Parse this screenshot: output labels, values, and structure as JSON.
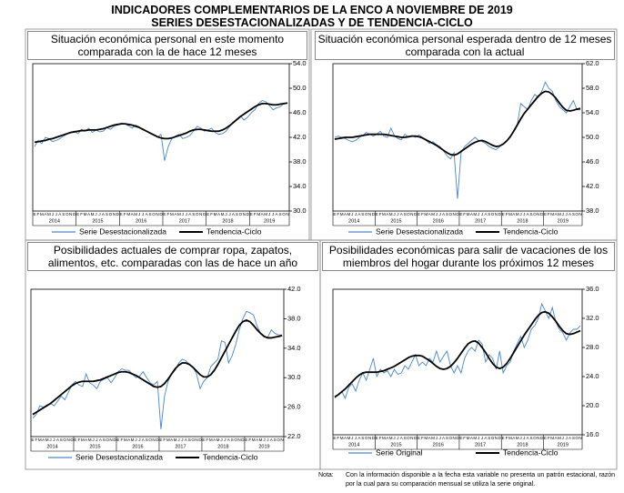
{
  "title": [
    "INDICADORES COMPLEMENTARIOS DE LA ENCO A NOVIEMBRE DE 2019",
    "SERIES DESESTACIONALIZADAS Y DE TENDENCIA-CICLO"
  ],
  "chart_data": [
    {
      "type": "line",
      "title": "Situación económica personal en este momento comparada con la de hace 12 meses",
      "categories": [
        "E",
        "F",
        "M",
        "A",
        "M",
        "J",
        "J",
        "A",
        "S",
        "O",
        "N",
        "D",
        "E",
        "F",
        "M",
        "A",
        "M",
        "J",
        "J",
        "A",
        "S",
        "O",
        "N",
        "D",
        "E",
        "F",
        "M",
        "A",
        "M",
        "J",
        "J",
        "A",
        "S",
        "O",
        "N",
        "D",
        "E",
        "F",
        "M",
        "A",
        "M",
        "J",
        "J",
        "A",
        "S",
        "O",
        "N",
        "D",
        "E",
        "F",
        "M",
        "A",
        "M",
        "J",
        "J",
        "A",
        "S",
        "O",
        "N",
        "D",
        "E",
        "F",
        "M",
        "A",
        "M",
        "J",
        "J",
        "A",
        "S",
        "O",
        "N"
      ],
      "years": [
        "2014",
        "2015",
        "2016",
        "2017",
        "2018",
        "2019"
      ],
      "ylim": [
        30,
        54
      ],
      "yticks": [
        {
          "value": 30,
          "label": "30.0"
        },
        {
          "value": 34,
          "label": "34.0"
        },
        {
          "value": 38,
          "label": "38.0"
        },
        {
          "value": 42,
          "label": "42.0"
        },
        {
          "value": 46,
          "label": "46.0"
        },
        {
          "value": 50,
          "label": "50.0"
        },
        {
          "value": 54,
          "label": "54.0"
        }
      ],
      "series": [
        {
          "name": "Serie Desestacionalizada",
          "color": "#4a86c8",
          "values": [
            40.5,
            41.5,
            41.0,
            42.0,
            41.8,
            41.3,
            41.5,
            41.8,
            42.2,
            42.5,
            42.8,
            43.0,
            42.6,
            43.3,
            43.0,
            43.5,
            42.8,
            43.2,
            42.9,
            43.0,
            43.6,
            43.3,
            43.8,
            44.0,
            44.3,
            44.2,
            43.9,
            43.5,
            44.0,
            43.7,
            43.2,
            43.0,
            42.7,
            42.4,
            42.0,
            42.5,
            38.2,
            40.5,
            41.8,
            42.2,
            42.5,
            41.8,
            42.0,
            42.3,
            43.0,
            43.8,
            43.5,
            43.0,
            43.2,
            43.5,
            42.8,
            42.5,
            42.6,
            43.0,
            43.8,
            44.5,
            45.0,
            45.5,
            44.8,
            45.3,
            46.0,
            46.5,
            47.5,
            48.0,
            47.8,
            47.2,
            46.5,
            46.8,
            47.0,
            47.5,
            47.6
          ]
        },
        {
          "name": "Tendencia-Ciclo",
          "color": "#000000",
          "values": [
            41.2,
            41.3,
            41.4,
            41.5,
            41.7,
            41.8,
            42.0,
            42.2,
            42.4,
            42.6,
            42.8,
            42.9,
            43.0,
            43.1,
            43.1,
            43.2,
            43.2,
            43.2,
            43.3,
            43.4,
            43.6,
            43.8,
            44.0,
            44.1,
            44.2,
            44.2,
            44.1,
            44.0,
            43.8,
            43.6,
            43.3,
            43.0,
            42.7,
            42.4,
            42.1,
            41.9,
            41.8,
            41.8,
            41.9,
            42.1,
            42.3,
            42.5,
            42.7,
            43.0,
            43.2,
            43.3,
            43.3,
            43.2,
            43.1,
            43.0,
            43.0,
            43.0,
            43.2,
            43.5,
            43.9,
            44.4,
            44.9,
            45.4,
            45.8,
            46.2,
            46.6,
            47.0,
            47.3,
            47.5,
            47.5,
            47.4,
            47.3,
            47.3,
            47.4,
            47.5,
            47.6
          ]
        }
      ]
    },
    {
      "type": "line",
      "title": "Situación económica personal esperada dentro de 12 meses comparada con la actual",
      "categories": [
        "E",
        "F",
        "M",
        "A",
        "M",
        "J",
        "J",
        "A",
        "S",
        "O",
        "N",
        "D",
        "E",
        "F",
        "M",
        "A",
        "M",
        "J",
        "J",
        "A",
        "S",
        "O",
        "N",
        "D",
        "E",
        "F",
        "M",
        "A",
        "M",
        "J",
        "J",
        "A",
        "S",
        "O",
        "N",
        "D",
        "E",
        "F",
        "M",
        "A",
        "M",
        "J",
        "J",
        "A",
        "S",
        "O",
        "N",
        "D",
        "E",
        "F",
        "M",
        "A",
        "M",
        "J",
        "J",
        "A",
        "S",
        "O",
        "N",
        "D",
        "E",
        "F",
        "M",
        "A",
        "M",
        "J",
        "J",
        "A",
        "S",
        "O",
        "N"
      ],
      "years": [
        "2014",
        "2015",
        "2016",
        "2017",
        "2018",
        "2019"
      ],
      "ylim": [
        38,
        62
      ],
      "yticks": [
        {
          "value": 38,
          "label": "38.0"
        },
        {
          "value": 42,
          "label": "42.0"
        },
        {
          "value": 46,
          "label": "46.0"
        },
        {
          "value": 50,
          "label": "50.0"
        },
        {
          "value": 54,
          "label": "54.0"
        },
        {
          "value": 58,
          "label": "58.0"
        },
        {
          "value": 62,
          "label": "62.0"
        }
      ],
      "series": [
        {
          "name": "Serie Desestacionalizada",
          "color": "#4a86c8",
          "values": [
            50.0,
            50.2,
            50.0,
            49.8,
            49.5,
            49.3,
            49.5,
            50.0,
            50.3,
            50.8,
            50.5,
            50.2,
            50.5,
            51.0,
            50.2,
            50.0,
            51.5,
            50.3,
            49.8,
            49.6,
            50.5,
            50.0,
            50.3,
            50.0,
            50.4,
            50.0,
            49.5,
            49.0,
            49.3,
            48.8,
            48.5,
            47.8,
            47.0,
            46.5,
            47.5,
            40.0,
            47.5,
            48.5,
            49.0,
            49.5,
            50.0,
            49.5,
            49.3,
            49.0,
            48.5,
            48.2,
            48.0,
            48.5,
            49.0,
            49.5,
            50.0,
            51.0,
            52.0,
            55.5,
            55.0,
            54.5,
            56.0,
            57.0,
            56.5,
            57.5,
            59.0,
            58.0,
            57.5,
            56.0,
            55.0,
            54.5,
            54.0,
            55.0,
            56.0,
            54.5,
            54.5
          ]
        },
        {
          "name": "Tendencia-Ciclo",
          "color": "#000000",
          "values": [
            49.7,
            49.8,
            49.9,
            50.0,
            50.0,
            50.0,
            50.1,
            50.2,
            50.3,
            50.4,
            50.5,
            50.5,
            50.5,
            50.5,
            50.5,
            50.4,
            50.3,
            50.2,
            50.1,
            50.0,
            50.0,
            50.1,
            50.2,
            50.2,
            50.1,
            49.9,
            49.6,
            49.3,
            49.0,
            48.7,
            48.3,
            47.9,
            47.5,
            47.2,
            47.1,
            47.3,
            47.7,
            48.1,
            48.5,
            48.9,
            49.2,
            49.4,
            49.5,
            49.3,
            49.0,
            48.7,
            48.5,
            48.6,
            48.9,
            49.4,
            50.1,
            51.0,
            52.0,
            53.0,
            53.9,
            54.6,
            55.3,
            56.0,
            56.7,
            57.2,
            57.5,
            57.4,
            57.0,
            56.4,
            55.6,
            54.9,
            54.4,
            54.3,
            54.4,
            54.6,
            54.7
          ]
        }
      ]
    },
    {
      "type": "line",
      "title": "Posibilidades actuales de comprar ropa, zapatos, alimentos, etc. comparadas con las de hace un año",
      "categories": [
        "E",
        "F",
        "M",
        "A",
        "M",
        "J",
        "J",
        "A",
        "S",
        "O",
        "N",
        "D",
        "E",
        "F",
        "M",
        "A",
        "M",
        "J",
        "J",
        "A",
        "S",
        "O",
        "N",
        "D",
        "E",
        "F",
        "M",
        "A",
        "M",
        "J",
        "J",
        "A",
        "S",
        "O",
        "N",
        "D",
        "E",
        "F",
        "M",
        "A",
        "M",
        "J",
        "J",
        "A",
        "S",
        "O",
        "N",
        "D",
        "E",
        "F",
        "M",
        "A",
        "M",
        "J",
        "J",
        "A",
        "S",
        "O",
        "N",
        "D",
        "E",
        "F",
        "M",
        "A",
        "M",
        "J",
        "J",
        "A",
        "S",
        "O",
        "N"
      ],
      "years": [
        "2014",
        "2015",
        "2016",
        "2017",
        "2018",
        "2019"
      ],
      "ylim": [
        22,
        42
      ],
      "yticks": [
        {
          "value": 22,
          "label": "22.0"
        },
        {
          "value": 26,
          "label": "26.0"
        },
        {
          "value": 30,
          "label": "30.0"
        },
        {
          "value": 34,
          "label": "34.0"
        },
        {
          "value": 38,
          "label": "38.0"
        },
        {
          "value": 42,
          "label": "42.0"
        }
      ],
      "series": [
        {
          "name": "Serie Desestacionalizada",
          "color": "#4a86c8",
          "values": [
            24.5,
            25.0,
            26.2,
            26.0,
            26.3,
            26.5,
            26.2,
            26.8,
            27.5,
            27.0,
            28.0,
            29.0,
            29.5,
            29.0,
            28.8,
            30.5,
            29.3,
            29.0,
            28.5,
            29.5,
            29.8,
            30.0,
            29.3,
            30.0,
            30.8,
            31.2,
            31.0,
            31.0,
            30.5,
            30.0,
            30.2,
            30.8,
            30.0,
            29.3,
            29.0,
            29.5,
            23.0,
            27.5,
            29.5,
            30.5,
            31.0,
            32.0,
            32.5,
            32.3,
            31.8,
            31.5,
            30.5,
            28.5,
            29.5,
            30.0,
            31.5,
            32.0,
            32.5,
            35.0,
            34.8,
            32.0,
            33.0,
            34.5,
            36.5,
            38.0,
            39.0,
            38.8,
            38.5,
            37.0,
            36.0,
            35.5,
            35.5,
            36.5,
            36.0,
            35.8,
            35.8
          ]
        },
        {
          "name": "Tendencia-Ciclo",
          "color": "#000000",
          "values": [
            25.0,
            25.3,
            25.6,
            25.9,
            26.2,
            26.5,
            26.9,
            27.3,
            27.7,
            28.1,
            28.5,
            28.9,
            29.2,
            29.4,
            29.5,
            29.5,
            29.5,
            29.5,
            29.6,
            29.7,
            29.9,
            30.1,
            30.3,
            30.5,
            30.7,
            30.8,
            30.8,
            30.7,
            30.5,
            30.3,
            30.0,
            29.7,
            29.4,
            29.1,
            28.8,
            28.7,
            28.8,
            29.2,
            29.8,
            30.5,
            31.2,
            31.7,
            32.0,
            32.0,
            31.8,
            31.4,
            30.9,
            30.4,
            30.1,
            30.1,
            30.4,
            31.0,
            31.8,
            32.7,
            33.6,
            34.5,
            35.4,
            36.3,
            37.1,
            37.6,
            37.8,
            37.6,
            37.1,
            36.5,
            36.0,
            35.6,
            35.4,
            35.4,
            35.5,
            35.6,
            35.7
          ]
        }
      ]
    },
    {
      "type": "line",
      "title": "Posibilidades económicas para salir de vacaciones de los miembros del hogar durante los próximos 12 meses",
      "categories": [
        "E",
        "F",
        "M",
        "A",
        "M",
        "J",
        "J",
        "A",
        "S",
        "O",
        "N",
        "D",
        "E",
        "F",
        "M",
        "A",
        "M",
        "J",
        "J",
        "A",
        "S",
        "O",
        "N",
        "D",
        "E",
        "F",
        "M",
        "A",
        "M",
        "J",
        "J",
        "A",
        "S",
        "O",
        "N",
        "D",
        "E",
        "F",
        "M",
        "A",
        "M",
        "J",
        "J",
        "A",
        "S",
        "O",
        "N",
        "D",
        "E",
        "F",
        "M",
        "A",
        "M",
        "J",
        "J",
        "A",
        "S",
        "O",
        "N",
        "D",
        "E",
        "F",
        "M",
        "A",
        "M",
        "J",
        "J",
        "A",
        "S",
        "O",
        "N"
      ],
      "years": [
        "2014",
        "2015",
        "2016",
        "2017",
        "2018",
        "2019"
      ],
      "ylim": [
        16,
        36
      ],
      "yticks": [
        {
          "value": 16,
          "label": "16.0"
        },
        {
          "value": 20,
          "label": "20.0"
        },
        {
          "value": 24,
          "label": "24.0"
        },
        {
          "value": 28,
          "label": "28.0"
        },
        {
          "value": 32,
          "label": "32.0"
        },
        {
          "value": 36,
          "label": "36.0"
        }
      ],
      "series": [
        {
          "name": "Serie Original",
          "color": "#4a86c8",
          "values": [
            21.0,
            21.5,
            22.0,
            21.0,
            22.5,
            23.0,
            22.0,
            23.5,
            24.5,
            23.5,
            25.0,
            26.5,
            24.0,
            25.0,
            24.5,
            24.8,
            24.0,
            25.0,
            24.3,
            24.5,
            25.5,
            25.0,
            26.0,
            27.0,
            25.5,
            26.0,
            25.5,
            26.5,
            26.0,
            27.5,
            26.0,
            26.8,
            27.5,
            25.5,
            24.5,
            25.5,
            24.5,
            26.5,
            27.5,
            28.0,
            27.5,
            29.0,
            28.5,
            26.0,
            27.0,
            26.5,
            25.0,
            27.5,
            24.5,
            25.5,
            26.0,
            27.5,
            28.5,
            29.5,
            28.0,
            29.0,
            30.5,
            31.0,
            32.0,
            34.0,
            33.0,
            32.0,
            33.5,
            31.5,
            30.5,
            30.0,
            29.0,
            30.0,
            30.5,
            30.5,
            31.0
          ]
        },
        {
          "name": "Tendencia-Ciclo",
          "color": "#000000",
          "values": [
            21.2,
            21.5,
            21.9,
            22.3,
            22.8,
            23.3,
            23.8,
            24.2,
            24.5,
            24.6,
            24.6,
            24.6,
            24.6,
            24.7,
            24.8,
            25.0,
            25.2,
            25.4,
            25.7,
            26.0,
            26.3,
            26.6,
            26.8,
            26.9,
            26.9,
            26.8,
            26.5,
            26.2,
            25.8,
            25.4,
            25.1,
            25.0,
            25.1,
            25.4,
            25.9,
            26.5,
            27.2,
            27.9,
            28.5,
            28.8,
            28.9,
            28.6,
            28.0,
            27.3,
            26.5,
            25.8,
            25.3,
            25.1,
            25.3,
            25.8,
            26.5,
            27.3,
            28.1,
            28.9,
            29.7,
            30.4,
            31.1,
            31.8,
            32.4,
            32.8,
            32.9,
            32.7,
            32.2,
            31.6,
            30.9,
            30.3,
            29.9,
            29.8,
            29.9,
            30.1,
            30.3
          ]
        }
      ]
    }
  ],
  "note": {
    "label": "Nota:",
    "text": "Con la información disponible a la fecha esta variable no presenta un patrón estacional, razón por la cual para su comparación mensual se utiliza la serie original."
  }
}
